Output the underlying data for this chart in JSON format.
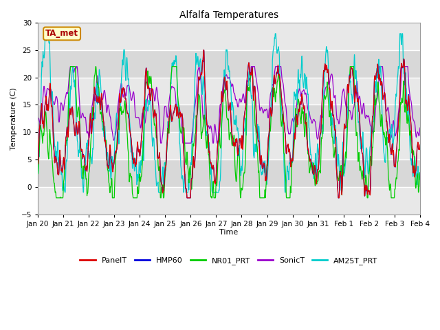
{
  "title": "Alfalfa Temperatures",
  "xlabel": "Time",
  "ylabel": "Temperature (C)",
  "ylim": [
    -5,
    30
  ],
  "yticks": [
    -5,
    0,
    5,
    10,
    15,
    20,
    25,
    30
  ],
  "annotation_text": "TA_met",
  "annotation_color": "#aa0000",
  "annotation_bg": "#ffffcc",
  "annotation_border": "#cc8800",
  "colors": {
    "PanelT": "#dd0000",
    "HMP60": "#0000dd",
    "NR01_PRT": "#00cc00",
    "SonicT": "#9900cc",
    "AM25T_PRT": "#00cccc"
  },
  "plot_bg_light": "#f0f0f0",
  "plot_bg_dark": "#e0e0e0",
  "n_points": 3000,
  "seed": 12345
}
